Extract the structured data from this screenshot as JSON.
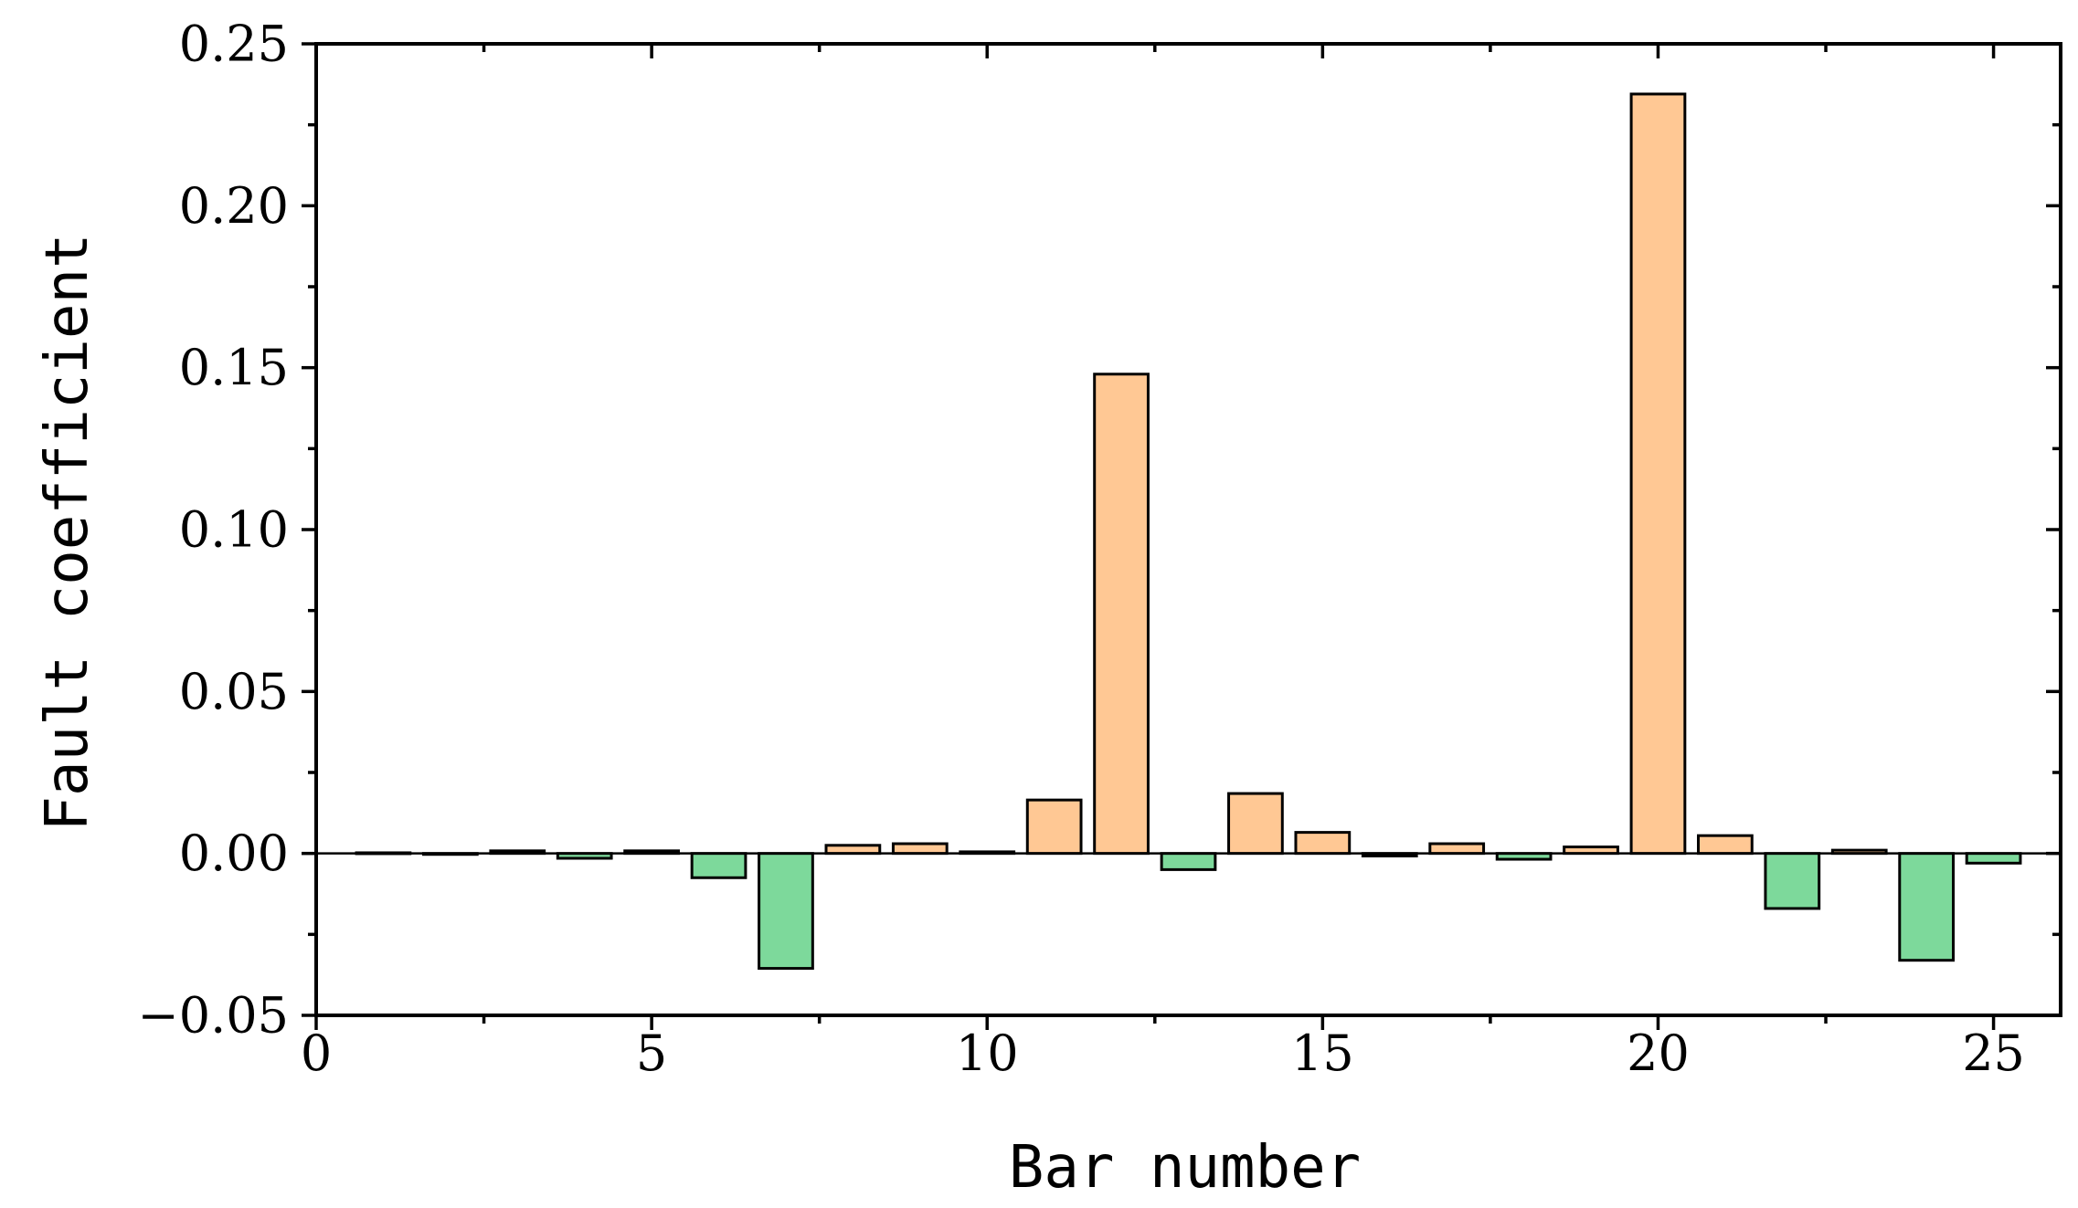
{
  "chart_data": {
    "type": "bar",
    "title": "",
    "xlabel": "Bar number",
    "ylabel": "Fault coefficient",
    "xlim": [
      0,
      26
    ],
    "ylim": [
      -0.05,
      0.25
    ],
    "x_ticks": [
      "0",
      "5",
      "10",
      "15",
      "20",
      "25"
    ],
    "y_ticks": [
      "−0.05",
      "0.00",
      "0.05",
      "0.10",
      "0.15",
      "0.20",
      "0.25"
    ],
    "grid": false,
    "legend": "none",
    "colors": {
      "positive": "#FFC894",
      "negative": "#7DD99B",
      "outline": "#000000"
    },
    "x": [
      1,
      2,
      3,
      4,
      5,
      6,
      7,
      8,
      9,
      10,
      11,
      12,
      13,
      14,
      15,
      16,
      17,
      18,
      19,
      20,
      21,
      22,
      23,
      24,
      25
    ],
    "values": [
      0.0002,
      -0.0003,
      0.0008,
      -0.0015,
      0.0008,
      -0.0075,
      -0.0355,
      0.0025,
      0.003,
      0.0005,
      0.0165,
      0.148,
      -0.005,
      0.0185,
      0.0065,
      -0.0008,
      0.003,
      -0.0018,
      0.002,
      0.2345,
      0.0055,
      -0.017,
      0.001,
      -0.033,
      -0.003
    ]
  }
}
